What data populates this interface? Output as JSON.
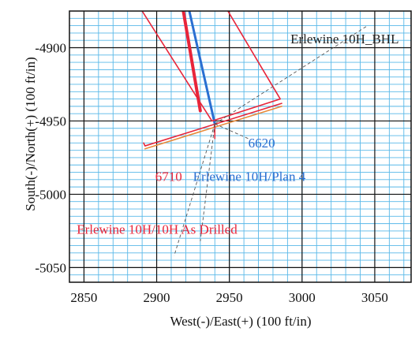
{
  "chart_data": {
    "type": "line",
    "xlabel": "West(-)/East(+) (100 ft/in)",
    "ylabel": "South(-)/North(+) (100 ft/in)",
    "xlim": [
      2840,
      3075
    ],
    "ylim": [
      -5060,
      -4875
    ],
    "xticks": [
      2850,
      2900,
      2950,
      3000,
      3050
    ],
    "yticks": [
      -4900,
      -4950,
      -5000,
      -5050
    ],
    "x_tick_labels": [
      "2850",
      "2900",
      "2950",
      "3000",
      "3050"
    ],
    "y_tick_labels": [
      "-4900",
      "-4950",
      "-5000",
      "-5050"
    ],
    "grid": true,
    "grid_major_color": "#111111",
    "grid_minor_color": "#58b8e8",
    "series": [
      {
        "name": "Erlewine 10H/10H As Drilled",
        "color": "#e8253a",
        "width": 4,
        "x": [
          2918,
          2930
        ],
        "y": [
          -4873,
          -4943
        ]
      },
      {
        "name": "Erlewine 10H/Plan 4",
        "color": "#2a6fd1",
        "width": 3,
        "x": [
          2922,
          2940
        ],
        "y": [
          -4873,
          -4952
        ]
      },
      {
        "name": "",
        "color": "#e8253a",
        "width": 1.6,
        "x": [
          2890,
          2938,
          2985,
          2940
        ],
        "y": [
          -4875,
          -4950,
          -4935,
          -4860
        ]
      },
      {
        "name": "",
        "color": "#e8253a",
        "width": 1.6,
        "x": [
          2892,
          2986
        ],
        "y": [
          -4967,
          -4938
        ]
      },
      {
        "name": "",
        "color": "#e88a3a",
        "width": 1.6,
        "x": [
          2892,
          2986
        ],
        "y": [
          -4969,
          -4940
        ]
      },
      {
        "name": "",
        "color": "#e8253a",
        "width": 1.6,
        "x": [
          2892,
          2891
        ],
        "y": [
          -4967,
          -4965
        ]
      },
      {
        "name": "",
        "color": "#e8253a",
        "width": 1.5,
        "x": [
          2940,
          2940
        ],
        "y": [
          -4952,
          -4962
        ]
      }
    ],
    "dashed": [
      {
        "color": "#555555",
        "x": [
          2940,
          3045
        ],
        "y": [
          -4952,
          -4885
        ]
      },
      {
        "color": "#555555",
        "x": [
          2940,
          2930
        ],
        "y": [
          -4952,
          -5032
        ]
      },
      {
        "color": "#555555",
        "x": [
          2940,
          2912
        ],
        "y": [
          -4952,
          -5042
        ]
      },
      {
        "color": "#555555",
        "x": [
          2940,
          2963
        ],
        "y": [
          -4952,
          -4962
        ]
      }
    ],
    "annotations": [
      {
        "text": "Erlewine 10H_BHL",
        "x": 2992,
        "y": -4897,
        "color": "#222222"
      },
      {
        "text": "6620",
        "x": 2963,
        "y": -4968,
        "color": "#2a6fd1"
      },
      {
        "text": "6710",
        "x": 2899,
        "y": -4991,
        "color": "#e8253a"
      },
      {
        "text": "Erlewine 10H/Plan 4",
        "x": 2925,
        "y": -4991,
        "color": "#2a6fd1"
      },
      {
        "text": "Erlewine 10H/10H As Drilled",
        "x": 2845,
        "y": -5027,
        "color": "#e8253a"
      }
    ]
  }
}
